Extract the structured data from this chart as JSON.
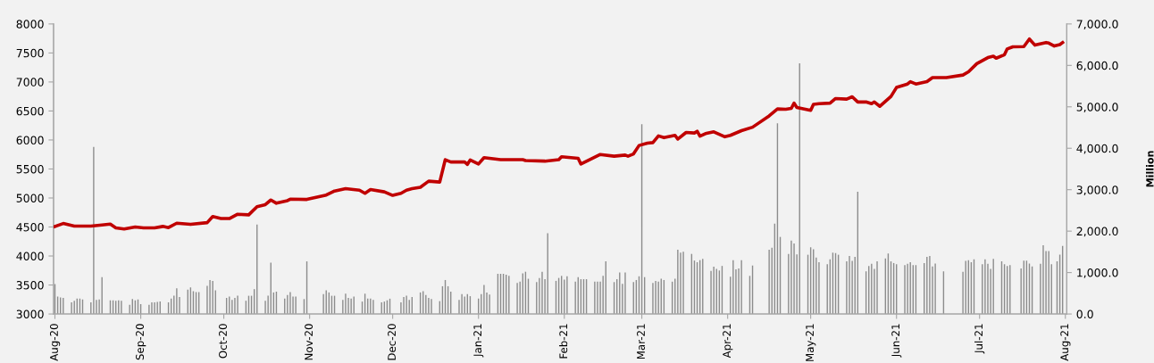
{
  "chart_data": {
    "type": "line",
    "y2label": "Million",
    "xlim": [
      "2020-07-31T12:00",
      "2021-08-01T12:00"
    ],
    "xticks": [
      {
        "value": "2020-08-01",
        "label": "Aug-20"
      },
      {
        "value": "2020-09-01",
        "label": "Sep-20"
      },
      {
        "value": "2020-10-01",
        "label": "Oct-20"
      },
      {
        "value": "2020-11-01",
        "label": "Nov-20"
      },
      {
        "value": "2020-12-01",
        "label": "Dec-20"
      },
      {
        "value": "2021-01-01",
        "label": "Jan-21"
      },
      {
        "value": "2021-02-01",
        "label": "Feb-21"
      },
      {
        "value": "2021-03-01",
        "label": "Mar-21"
      },
      {
        "value": "2021-04-01",
        "label": "Apr-21"
      },
      {
        "value": "2021-05-01",
        "label": "May-21"
      },
      {
        "value": "2021-06-01",
        "label": "Jun-21"
      },
      {
        "value": "2021-07-01",
        "label": "Jul-21"
      },
      {
        "value": "2021-08-01",
        "label": "Aug-21"
      }
    ],
    "ylim": [
      3000,
      8000
    ],
    "yticks": [
      3000,
      3500,
      4000,
      4500,
      5000,
      5500,
      6000,
      6500,
      7000,
      7500,
      8000
    ],
    "y2lim": [
      0,
      7000
    ],
    "y2ticks": [
      {
        "value": 0,
        "label": "0.0"
      },
      {
        "value": 1000,
        "label": "1,000.0"
      },
      {
        "value": 2000,
        "label": "2,000.0"
      },
      {
        "value": 3000,
        "label": "3,000.0"
      },
      {
        "value": 4000,
        "label": "4,000.0"
      },
      {
        "value": 5000,
        "label": "5,000.0"
      },
      {
        "value": 6000,
        "label": "6,000.0"
      },
      {
        "value": 7000,
        "label": "7,000.0"
      }
    ],
    "grid": false,
    "series": [
      {
        "type": "bar",
        "axis": "y2",
        "color": "#8c8c8c",
        "x": [
          "2020-08-01",
          "2020-08-02",
          "2020-08-03",
          "2020-08-04",
          "2020-08-07",
          "2020-08-08",
          "2020-08-09",
          "2020-08-10",
          "2020-08-11",
          "2020-08-14",
          "2020-08-15",
          "2020-08-16",
          "2020-08-17",
          "2020-08-18",
          "2020-08-21",
          "2020-08-22",
          "2020-08-23",
          "2020-08-24",
          "2020-08-25",
          "2020-08-28",
          "2020-08-29",
          "2020-08-30",
          "2020-08-31",
          "2020-09-01",
          "2020-09-04",
          "2020-09-05",
          "2020-09-06",
          "2020-09-07",
          "2020-09-08",
          "2020-09-11",
          "2020-09-12",
          "2020-09-13",
          "2020-09-14",
          "2020-09-15",
          "2020-09-18",
          "2020-09-19",
          "2020-09-20",
          "2020-09-21",
          "2020-09-22",
          "2020-09-25",
          "2020-09-26",
          "2020-09-27",
          "2020-09-28",
          "2020-10-02",
          "2020-10-03",
          "2020-10-04",
          "2020-10-05",
          "2020-10-06",
          "2020-10-09",
          "2020-10-10",
          "2020-10-11",
          "2020-10-12",
          "2020-10-13",
          "2020-10-16",
          "2020-10-17",
          "2020-10-18",
          "2020-10-19",
          "2020-10-20",
          "2020-10-23",
          "2020-10-24",
          "2020-10-25",
          "2020-10-26",
          "2020-10-27",
          "2020-10-30",
          "2020-10-31",
          "2020-11-06",
          "2020-11-07",
          "2020-11-08",
          "2020-11-09",
          "2020-11-10",
          "2020-11-13",
          "2020-11-14",
          "2020-11-15",
          "2020-11-16",
          "2020-11-17",
          "2020-11-20",
          "2020-11-21",
          "2020-11-22",
          "2020-11-23",
          "2020-11-24",
          "2020-11-27",
          "2020-11-28",
          "2020-11-29",
          "2020-11-30",
          "2020-12-04",
          "2020-12-05",
          "2020-12-06",
          "2020-12-07",
          "2020-12-08",
          "2020-12-11",
          "2020-12-12",
          "2020-12-13",
          "2020-12-14",
          "2020-12-15",
          "2020-12-18",
          "2020-12-19",
          "2020-12-20",
          "2020-12-21",
          "2020-12-22",
          "2020-12-25",
          "2020-12-26",
          "2020-12-27",
          "2020-12-28",
          "2020-12-29",
          "2021-01-01",
          "2021-01-02",
          "2021-01-03",
          "2021-01-04",
          "2021-01-05",
          "2021-01-08",
          "2021-01-09",
          "2021-01-10",
          "2021-01-11",
          "2021-01-12",
          "2021-01-15",
          "2021-01-16",
          "2021-01-17",
          "2021-01-18",
          "2021-01-19",
          "2021-01-22",
          "2021-01-23",
          "2021-01-24",
          "2021-01-25",
          "2021-01-26",
          "2021-01-29",
          "2021-01-30",
          "2021-01-31",
          "2021-02-01",
          "2021-02-02",
          "2021-02-05",
          "2021-02-06",
          "2021-02-07",
          "2021-02-08",
          "2021-02-09",
          "2021-02-12",
          "2021-02-13",
          "2021-02-14",
          "2021-02-15",
          "2021-02-16",
          "2021-02-19",
          "2021-02-20",
          "2021-02-21",
          "2021-02-22",
          "2021-02-23",
          "2021-02-26",
          "2021-02-27",
          "2021-02-28",
          "2021-03-01",
          "2021-03-02",
          "2021-03-05",
          "2021-03-06",
          "2021-03-07",
          "2021-03-08",
          "2021-03-09",
          "2021-03-12",
          "2021-03-13",
          "2021-03-14",
          "2021-03-15",
          "2021-03-16",
          "2021-03-19",
          "2021-03-20",
          "2021-03-21",
          "2021-03-22",
          "2021-03-23",
          "2021-03-26",
          "2021-03-27",
          "2021-03-28",
          "2021-03-29",
          "2021-03-30",
          "2021-04-02",
          "2021-04-03",
          "2021-04-04",
          "2021-04-05",
          "2021-04-06",
          "2021-04-09",
          "2021-04-10",
          "2021-04-16",
          "2021-04-17",
          "2021-04-18",
          "2021-04-19",
          "2021-04-20",
          "2021-04-23",
          "2021-04-24",
          "2021-04-25",
          "2021-04-26",
          "2021-04-27",
          "2021-04-30",
          "2021-05-01",
          "2021-05-02",
          "2021-05-03",
          "2021-05-04",
          "2021-05-07",
          "2021-05-08",
          "2021-05-09",
          "2021-05-10",
          "2021-05-11",
          "2021-05-14",
          "2021-05-15",
          "2021-05-16",
          "2021-05-17",
          "2021-05-18",
          "2021-05-21",
          "2021-05-22",
          "2021-05-23",
          "2021-05-24",
          "2021-05-25",
          "2021-05-28",
          "2021-05-29",
          "2021-05-30",
          "2021-05-31",
          "2021-06-01",
          "2021-06-04",
          "2021-06-05",
          "2021-06-06",
          "2021-06-07",
          "2021-06-08",
          "2021-06-11",
          "2021-06-12",
          "2021-06-13",
          "2021-06-14",
          "2021-06-15",
          "2021-06-18",
          "2021-06-25",
          "2021-06-26",
          "2021-06-27",
          "2021-06-28",
          "2021-06-29",
          "2021-07-02",
          "2021-07-03",
          "2021-07-04",
          "2021-07-05",
          "2021-07-06",
          "2021-07-09",
          "2021-07-10",
          "2021-07-11",
          "2021-07-12",
          "2021-07-16",
          "2021-07-17",
          "2021-07-18",
          "2021-07-19",
          "2021-07-20",
          "2021-07-23",
          "2021-07-24",
          "2021-07-25",
          "2021-07-26",
          "2021-07-27",
          "2021-07-29",
          "2021-07-30",
          "2021-07-31"
        ],
        "values": [
          720,
          420,
          400,
          390,
          280,
          320,
          370,
          370,
          350,
          280,
          4030,
          340,
          350,
          890,
          330,
          330,
          320,
          330,
          320,
          220,
          360,
          330,
          350,
          240,
          220,
          280,
          280,
          290,
          300,
          280,
          370,
          440,
          620,
          410,
          590,
          640,
          550,
          530,
          530,
          680,
          820,
          800,
          570,
          390,
          420,
          340,
          390,
          440,
          320,
          440,
          440,
          600,
          2160,
          320,
          440,
          1240,
          520,
          540,
          370,
          460,
          530,
          420,
          420,
          360,
          1270,
          480,
          570,
          520,
          440,
          440,
          340,
          490,
          390,
          370,
          420,
          300,
          490,
          370,
          370,
          340,
          280,
          300,
          330,
          370,
          280,
          410,
          440,
          340,
          410,
          520,
          550,
          460,
          390,
          360,
          310,
          670,
          820,
          670,
          540,
          340,
          480,
          420,
          480,
          430,
          370,
          480,
          700,
          520,
          470,
          970,
          970,
          970,
          950,
          920,
          750,
          780,
          980,
          1020,
          850,
          770,
          870,
          1020,
          840,
          1950,
          800,
          870,
          920,
          830,
          910,
          780,
          890,
          840,
          840,
          840,
          780,
          780,
          780,
          920,
          1270,
          770,
          840,
          1000,
          730,
          1000,
          770,
          820,
          910,
          4580,
          890,
          750,
          800,
          780,
          850,
          820,
          780,
          850,
          1550,
          1480,
          1500,
          1450,
          1290,
          1250,
          1300,
          1330,
          1040,
          1140,
          1090,
          1050,
          1160,
          900,
          1300,
          1080,
          1100,
          1300,
          920,
          1170,
          1550,
          1600,
          2180,
          4600,
          1860,
          1450,
          1770,
          1700,
          1440,
          6050,
          1430,
          1610,
          1560,
          1360,
          1250,
          1200,
          1320,
          1480,
          1470,
          1430,
          1270,
          1400,
          1280,
          1380,
          2950,
          1030,
          1160,
          1210,
          1090,
          1270,
          1340,
          1460,
          1270,
          1230,
          1200,
          1180,
          1210,
          1250,
          1180,
          1180,
          1230,
          1380,
          1400,
          1150,
          1220,
          1030,
          1020,
          1280,
          1300,
          1250,
          1320,
          1200,
          1320,
          1210,
          1090,
          1330,
          1270,
          1200,
          1160,
          1180,
          1100,
          1290,
          1290,
          1220,
          1150,
          1210,
          1660,
          1520,
          1520,
          1200,
          1270,
          1430,
          1640
        ]
      },
      {
        "axis": "y",
        "color": "#c00000",
        "x": [
          "2020-08-01",
          "2020-08-04",
          "2020-08-08",
          "2020-08-14",
          "2020-08-18",
          "2020-08-21",
          "2020-08-23",
          "2020-08-26",
          "2020-08-30",
          "2020-09-02",
          "2020-09-06",
          "2020-09-09",
          "2020-09-11",
          "2020-09-14",
          "2020-09-19",
          "2020-09-25",
          "2020-09-27",
          "2020-09-30",
          "2020-10-03",
          "2020-10-06",
          "2020-10-10",
          "2020-10-13",
          "2020-10-16",
          "2020-10-18",
          "2020-10-20",
          "2020-10-24",
          "2020-10-25",
          "2020-10-31",
          "2020-11-07",
          "2020-11-10",
          "2020-11-14",
          "2020-11-19",
          "2020-11-21",
          "2020-11-23",
          "2020-11-28",
          "2020-12-01",
          "2020-12-04",
          "2020-12-06",
          "2020-12-08",
          "2020-12-11",
          "2020-12-14",
          "2020-12-18",
          "2020-12-20",
          "2020-12-22",
          "2020-12-27",
          "2020-12-28",
          "2020-12-29",
          "2021-01-01",
          "2021-01-03",
          "2021-01-09",
          "2021-01-17",
          "2021-01-18",
          "2021-01-25",
          "2021-01-30",
          "2021-01-31",
          "2021-02-06",
          "2021-02-07",
          "2021-02-14",
          "2021-02-19",
          "2021-02-23",
          "2021-02-24",
          "2021-02-26",
          "2021-02-28",
          "2021-03-03",
          "2021-03-05",
          "2021-03-07",
          "2021-03-09",
          "2021-03-13",
          "2021-03-14",
          "2021-03-17",
          "2021-03-20",
          "2021-03-21",
          "2021-03-22",
          "2021-03-24",
          "2021-03-27",
          "2021-03-31",
          "2021-04-02",
          "2021-04-06",
          "2021-04-10",
          "2021-04-16",
          "2021-04-19",
          "2021-04-22",
          "2021-04-24",
          "2021-04-25",
          "2021-04-26",
          "2021-05-01",
          "2021-05-02",
          "2021-05-04",
          "2021-05-08",
          "2021-05-10",
          "2021-05-14",
          "2021-05-16",
          "2021-05-18",
          "2021-05-21",
          "2021-05-23",
          "2021-05-24",
          "2021-05-26",
          "2021-05-30",
          "2021-06-01",
          "2021-06-05",
          "2021-06-06",
          "2021-06-08",
          "2021-06-12",
          "2021-06-14",
          "2021-06-19",
          "2021-06-25",
          "2021-06-27",
          "2021-06-30",
          "2021-07-04",
          "2021-07-06",
          "2021-07-07",
          "2021-07-10",
          "2021-07-11",
          "2021-07-13",
          "2021-07-17",
          "2021-07-19",
          "2021-07-21",
          "2021-07-25",
          "2021-07-26",
          "2021-07-28",
          "2021-07-30",
          "2021-07-31"
        ],
        "values": [
          4510,
          4560,
          4515,
          4515,
          4535,
          4550,
          4485,
          4465,
          4500,
          4485,
          4485,
          4510,
          4490,
          4565,
          4545,
          4575,
          4680,
          4645,
          4645,
          4720,
          4710,
          4850,
          4885,
          4965,
          4910,
          4955,
          4980,
          4975,
          5050,
          5120,
          5160,
          5135,
          5080,
          5145,
          5105,
          5045,
          5080,
          5135,
          5160,
          5185,
          5290,
          5275,
          5660,
          5620,
          5620,
          5580,
          5655,
          5585,
          5695,
          5660,
          5660,
          5645,
          5635,
          5660,
          5710,
          5685,
          5585,
          5750,
          5720,
          5740,
          5720,
          5760,
          5905,
          5945,
          5955,
          6070,
          6040,
          6080,
          6015,
          6130,
          6120,
          6150,
          6065,
          6110,
          6140,
          6055,
          6080,
          6160,
          6220,
          6415,
          6535,
          6530,
          6545,
          6635,
          6560,
          6510,
          6615,
          6625,
          6635,
          6715,
          6705,
          6745,
          6655,
          6655,
          6625,
          6655,
          6580,
          6750,
          6905,
          6965,
          7005,
          6965,
          7005,
          7075,
          7075,
          7120,
          7175,
          7315,
          7420,
          7445,
          7410,
          7470,
          7570,
          7605,
          7610,
          7740,
          7635,
          7680,
          7670,
          7620,
          7645,
          7680
        ]
      }
    ]
  }
}
